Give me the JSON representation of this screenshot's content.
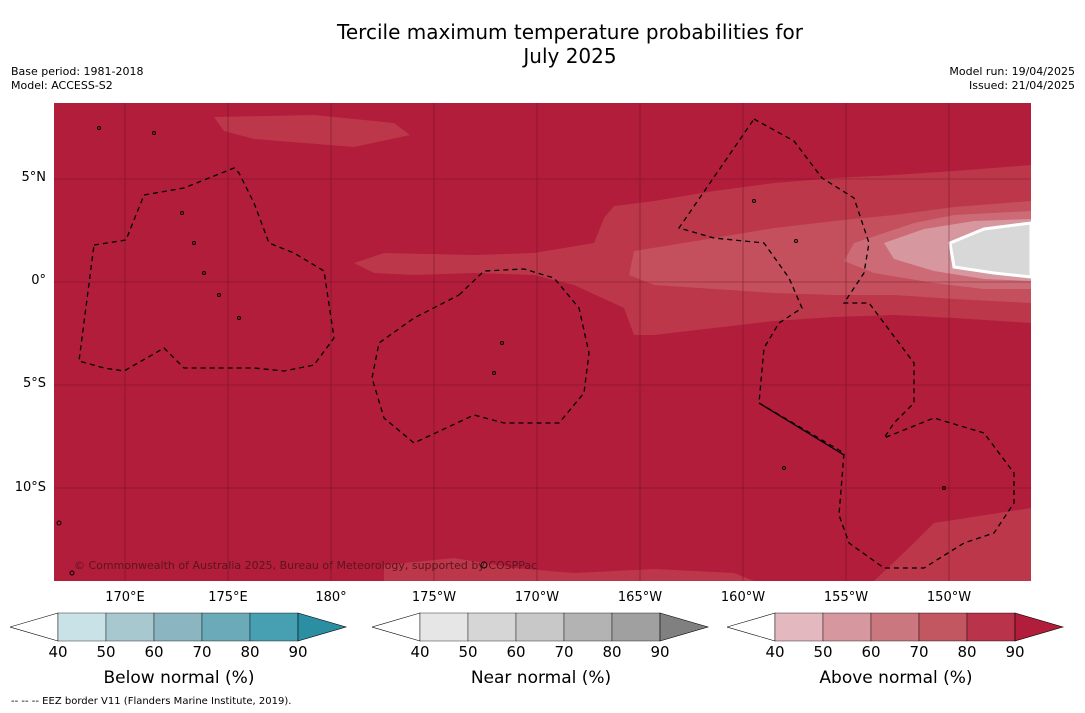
{
  "title": {
    "line1": "Tercile maximum temperature probabilities for",
    "line2": "July 2025"
  },
  "meta_left": {
    "base_period": "Base period: 1981-2018",
    "model": "Model: ACCESS-S2"
  },
  "meta_right": {
    "model_run": "Model run: 19/04/2025",
    "issued": "Issued: 21/04/2025"
  },
  "lat_labels": [
    "5°N",
    "0°",
    "5°S",
    "10°S"
  ],
  "lon_labels": [
    "170°E",
    "175°E",
    "180°",
    "175°W",
    "170°W",
    "165°W",
    "160°W",
    "155°W",
    "150°W"
  ],
  "copyright": "© Commonwealth of Australia 2025, Bureau of Meteorology, supported by COSPPac",
  "colorbars": [
    {
      "title": "Below normal (%)",
      "ticks": [
        "40",
        "50",
        "60",
        "70",
        "80",
        "90"
      ],
      "colors": [
        "#ffffff",
        "#c9e2e8",
        "#a8c8cf",
        "#8ab5c1",
        "#6aaab9",
        "#47a0b1",
        "#2b8ea3"
      ]
    },
    {
      "title": "Near normal (%)",
      "ticks": [
        "40",
        "50",
        "60",
        "70",
        "80",
        "90"
      ],
      "colors": [
        "#ffffff",
        "#e6e6e6",
        "#d6d6d6",
        "#c8c8c8",
        "#b3b3b3",
        "#a0a0a0",
        "#808080"
      ]
    },
    {
      "title": "Above normal (%)",
      "ticks": [
        "40",
        "50",
        "60",
        "70",
        "80",
        "90"
      ],
      "colors": [
        "#ffffff",
        "#e3b8be",
        "#d6979e",
        "#cb777f",
        "#c25661",
        "#b9334a",
        "#b11d3b"
      ]
    }
  ],
  "footnote": "--  --  -- EEZ border V11 (Flanders Marine Institute, 2019).",
  "map_colors": {
    "base": "#b11d3b",
    "level80": "#bc3749",
    "level70": "#c44f5d",
    "level60": "#cc6b76",
    "level50": "#d6979e",
    "near": "#d8d8d8"
  }
}
